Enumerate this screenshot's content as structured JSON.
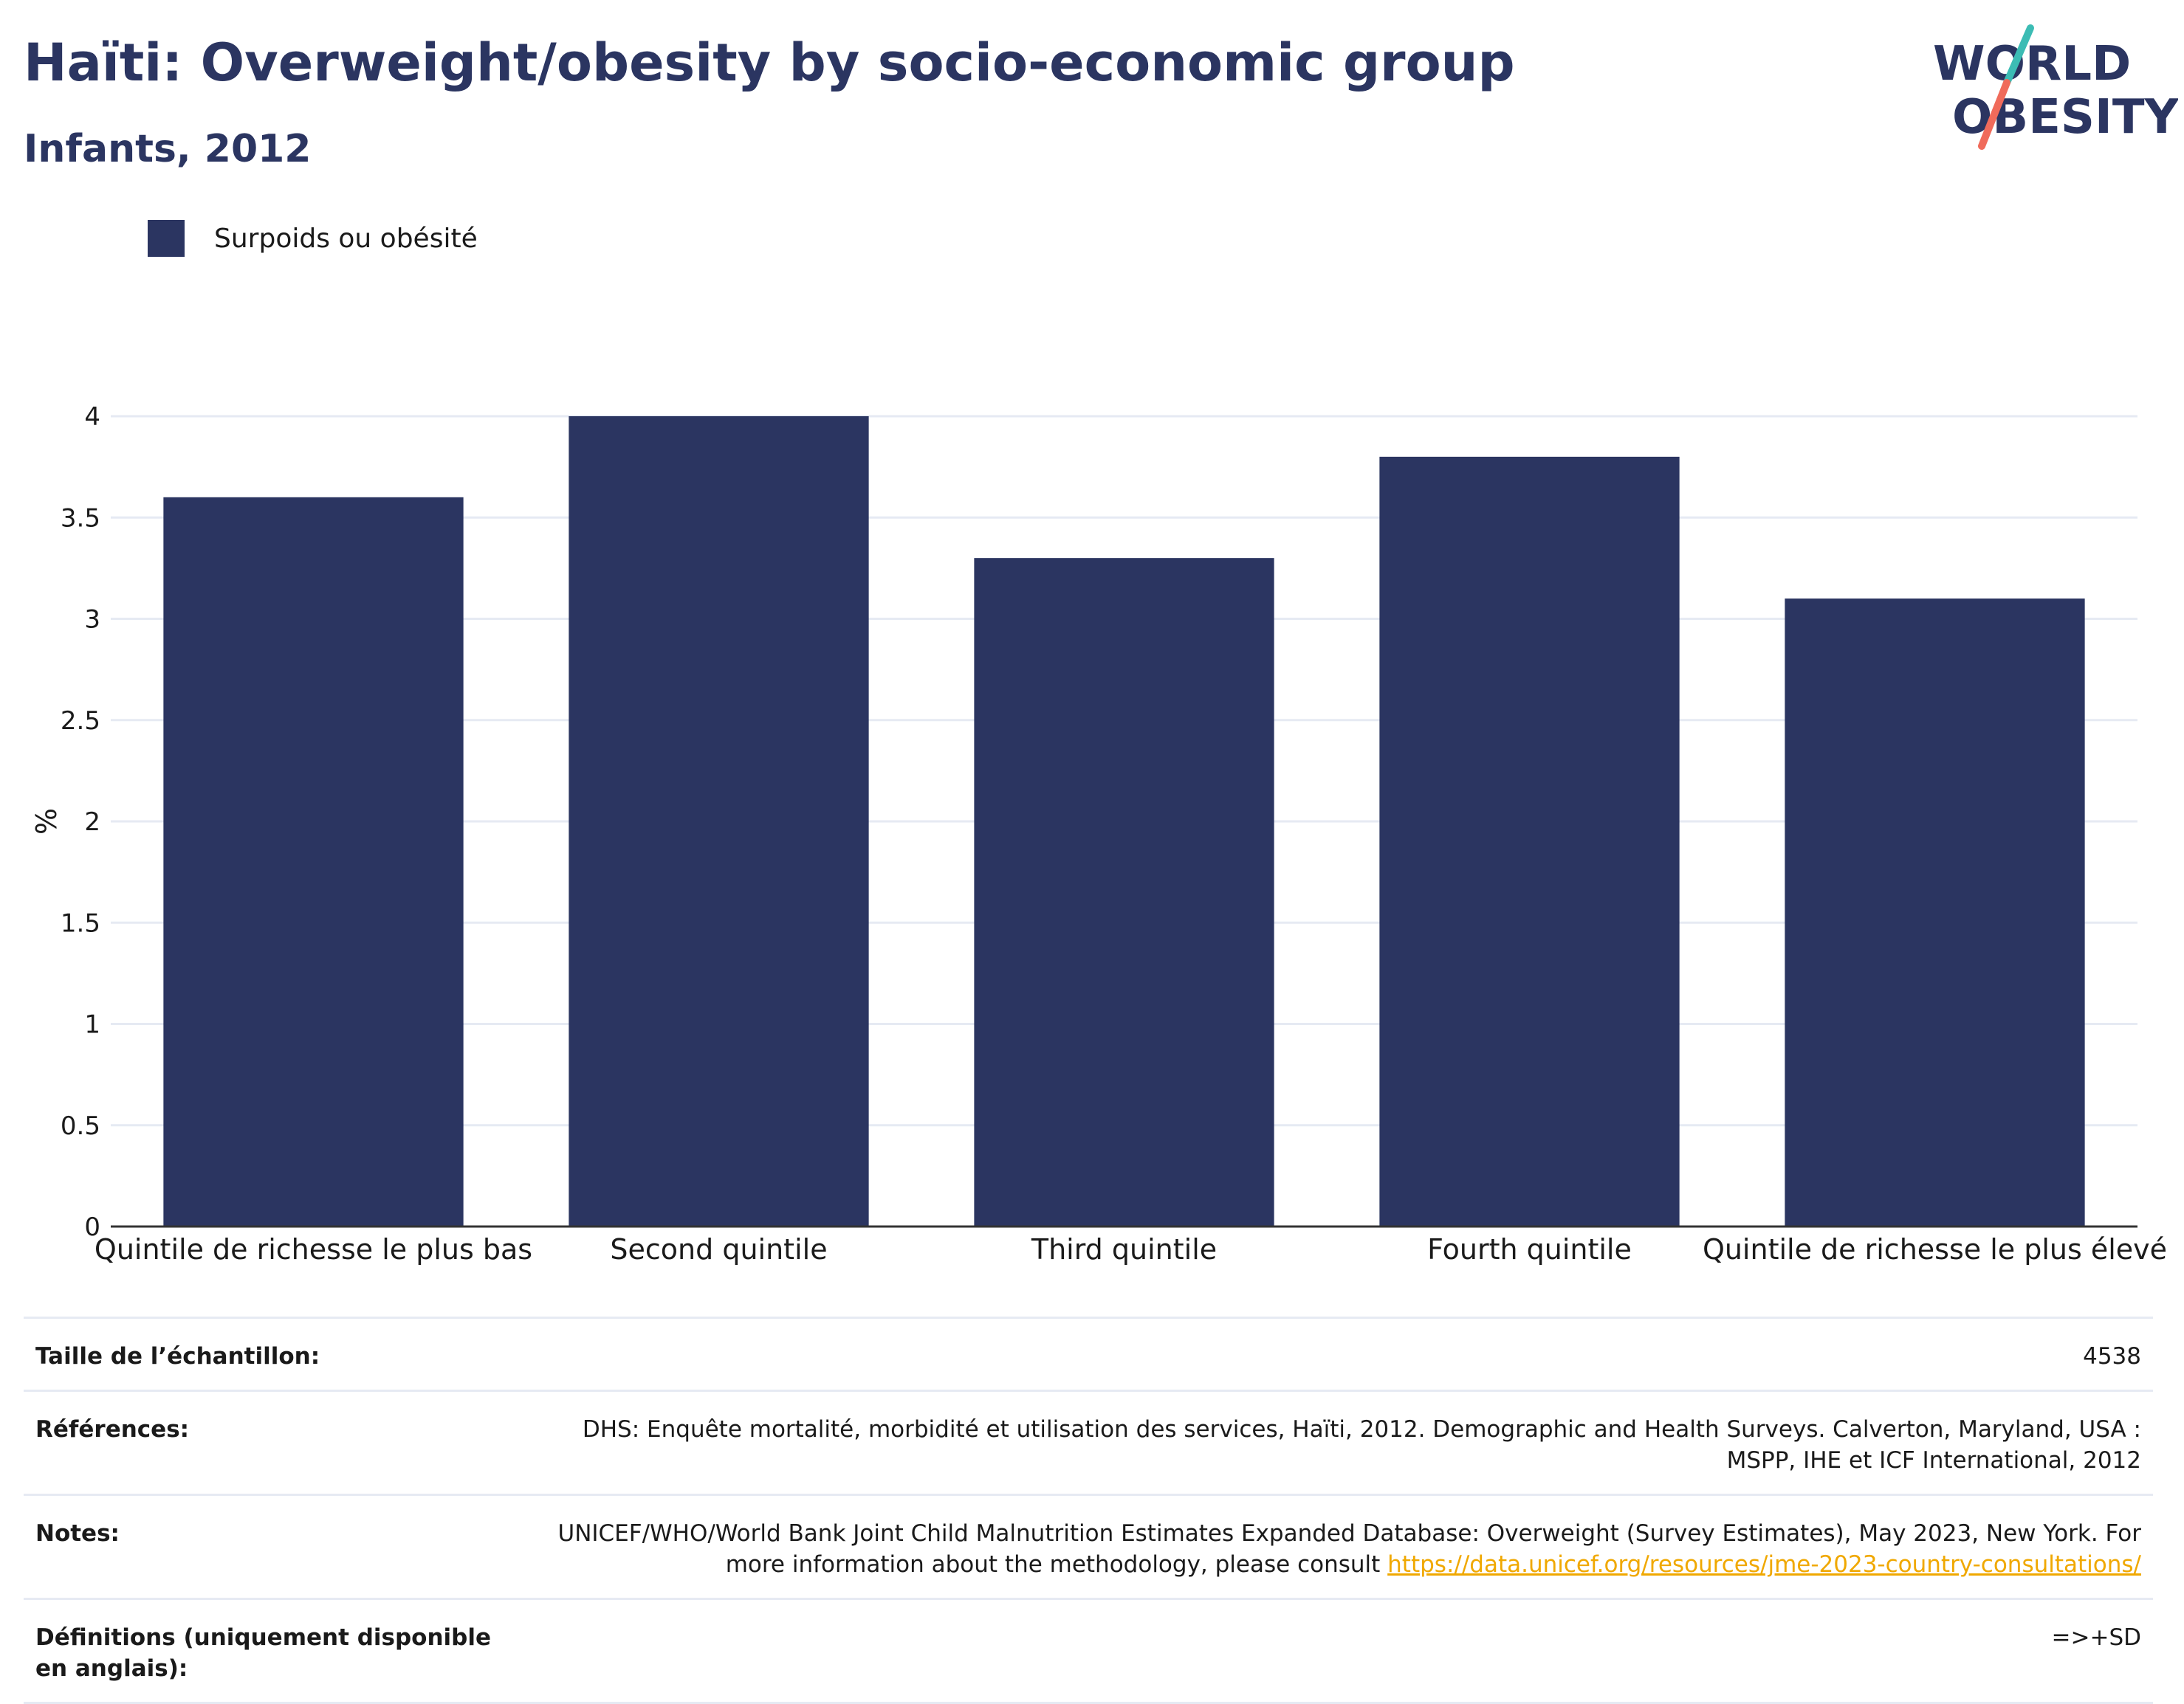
{
  "header": {
    "title": "Haïti: Overweight/obesity by socio-economic group",
    "subtitle": "Infants, 2012"
  },
  "logo": {
    "line1": "WORLD",
    "line2": "OBESITY",
    "colors": {
      "text": "#2b3561",
      "slash_top": "#3cbcb4",
      "slash_bottom": "#f06b5b"
    }
  },
  "colors": {
    "bar": "#2b3561",
    "grid": "#e6eaf3",
    "axis": "#333333",
    "link": "#f0a800"
  },
  "chart_data": {
    "type": "bar",
    "title": "",
    "xlabel": "",
    "ylabel": "%",
    "ylim": [
      0,
      4
    ],
    "yticks": [
      0,
      0.5,
      1,
      1.5,
      2,
      2.5,
      3,
      3.5,
      4
    ],
    "grid": true,
    "legend_position": "top-left",
    "categories": [
      "Quintile de richesse le plus bas",
      "Second quintile",
      "Third quintile",
      "Fourth quintile",
      "Quintile de richesse le plus élevé"
    ],
    "series": [
      {
        "name": "Surpoids ou obésité",
        "color": "#2b3561",
        "values": [
          3.6,
          4.0,
          3.3,
          3.8,
          3.1
        ]
      }
    ]
  },
  "info": [
    {
      "label": "Taille de l’échantillon:",
      "value": "4538"
    },
    {
      "label": "Références:",
      "value": "DHS: Enquête mortalité, morbidité et utilisation des services, Haïti, 2012. Demographic and Health Surveys. Calverton, Maryland, USA : MSPP, IHE et ICF International, 2012"
    },
    {
      "label": "Notes:",
      "value": "UNICEF/WHO/World Bank Joint Child Malnutrition Estimates Expanded Database: Overweight (Survey Estimates), May 2023, New York. For more information about the methodology, please consult ",
      "link": "https://data.unicef.org/resources/jme-2023-country-consultations/"
    },
    {
      "label": "Définitions (uniquement disponible en anglais):",
      "value": "=>+SD"
    }
  ]
}
